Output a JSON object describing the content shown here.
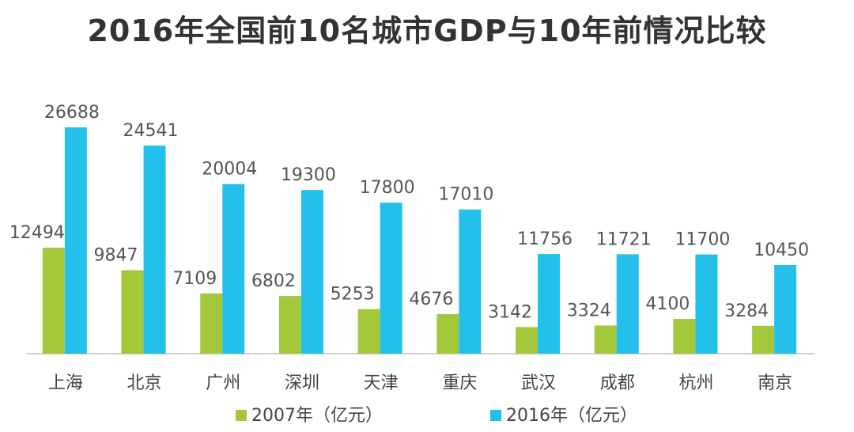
{
  "chart_data": {
    "type": "bar",
    "title": "2016年全国前10名城市GDP与10年前情况比较",
    "categories": [
      "上海",
      "北京",
      "广州",
      "深圳",
      "天津",
      "重庆",
      "武汉",
      "成都",
      "杭州",
      "南京"
    ],
    "series": [
      {
        "name": "2007年（亿元）",
        "color": "#a3c83a",
        "values": [
          12494,
          9847,
          7109,
          6802,
          5253,
          4676,
          3142,
          3324,
          4100,
          3284
        ]
      },
      {
        "name": "2016年（亿元）",
        "color": "#22c0ea",
        "values": [
          26688,
          24541,
          20004,
          19300,
          17800,
          17010,
          11756,
          11721,
          11700,
          10450
        ]
      }
    ],
    "ylim": [
      0,
      30000
    ],
    "xlabel": "",
    "ylabel": "",
    "grid": false,
    "legend": "bottom"
  }
}
